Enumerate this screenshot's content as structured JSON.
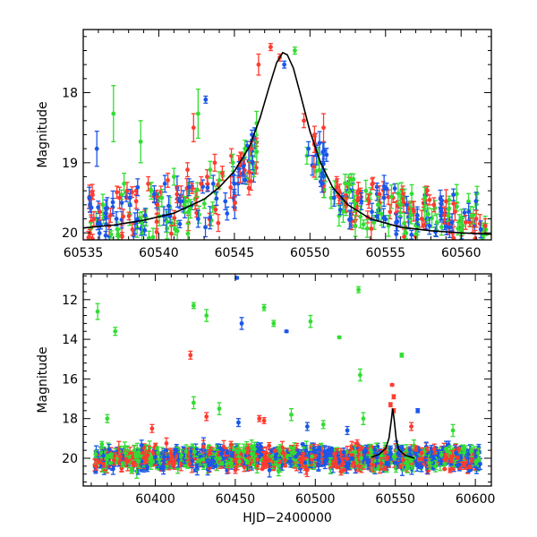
{
  "chart_data": [
    {
      "type": "scatter",
      "panel": "top",
      "title": "",
      "xlabel": "",
      "ylabel": "Magnitude",
      "xlim": [
        60535,
        60562
      ],
      "ylim": [
        20.1,
        17.1
      ],
      "y_inverted": true,
      "x_ticks": [
        60535,
        60540,
        60545,
        60550,
        60555,
        60560
      ],
      "x_tick_labels": [
        "60535",
        "60540",
        "60545",
        "60550",
        "60555",
        "60560"
      ],
      "y_ticks": [
        18,
        19,
        20
      ],
      "y_tick_labels": [
        "18",
        "19",
        "20"
      ],
      "grid": false,
      "legend": "none",
      "colors": {
        "red": "#ff3b2f",
        "green": "#33dd33",
        "blue": "#1a57e8",
        "model": "#000000"
      },
      "model_curve": {
        "description_peak": 60548.3,
        "x": [
          60535,
          60537,
          60539,
          60541,
          60543,
          60544,
          60545,
          60546,
          60546.7,
          60547.3,
          60547.8,
          60548.2,
          60548.5,
          60548.9,
          60549.4,
          60550,
          60550.7,
          60551.5,
          60552.5,
          60554,
          60556,
          60558,
          60560,
          60562
        ],
        "y": [
          19.93,
          19.89,
          19.82,
          19.72,
          19.52,
          19.35,
          19.12,
          18.77,
          18.36,
          17.92,
          17.57,
          17.43,
          17.46,
          17.65,
          18.05,
          18.55,
          19.0,
          19.35,
          19.6,
          19.8,
          19.92,
          19.97,
          20.0,
          20.02
        ]
      },
      "series": [
        {
          "color": "red",
          "points": [
            [
              60535.7,
              19.8,
              0.1
            ],
            [
              60536.1,
              19.7,
              0.12
            ],
            [
              60536.8,
              19.75,
              0.1
            ],
            [
              60537.4,
              19.5,
              0.15
            ],
            [
              60537.9,
              19.4,
              0.12
            ],
            [
              60538.5,
              19.55,
              0.1
            ],
            [
              60539.3,
              19.3,
              0.1
            ],
            [
              60539.9,
              19.6,
              0.12
            ],
            [
              60540.6,
              19.25,
              0.1
            ],
            [
              60541.2,
              19.45,
              0.12
            ],
            [
              60541.9,
              19.1,
              0.1
            ],
            [
              60542.3,
              18.5,
              0.2
            ],
            [
              60542.8,
              19.3,
              0.1
            ],
            [
              60543.2,
              19.2,
              0.1
            ],
            [
              60543.7,
              19.0,
              0.12
            ],
            [
              60544.2,
              19.15,
              0.1
            ],
            [
              60544.8,
              18.9,
              0.1
            ],
            [
              60545.4,
              18.95,
              0.1
            ],
            [
              60546.1,
              18.8,
              0.1
            ],
            [
              60546.6,
              17.6,
              0.15
            ],
            [
              60547.4,
              17.35,
              0.05
            ],
            [
              60548.0,
              17.5,
              0.05
            ],
            [
              60549.6,
              18.4,
              0.1
            ],
            [
              60550.3,
              18.6,
              0.12
            ],
            [
              60550.9,
              18.5,
              0.2
            ],
            [
              60551.8,
              19.35,
              0.12
            ],
            [
              60552.4,
              19.6,
              0.1
            ],
            [
              60553.2,
              19.4,
              0.12
            ],
            [
              60553.9,
              19.55,
              0.1
            ],
            [
              60554.6,
              19.45,
              0.12
            ],
            [
              60555.3,
              19.7,
              0.1
            ],
            [
              60556.1,
              19.5,
              0.12
            ],
            [
              60556.8,
              19.65,
              0.1
            ],
            [
              60557.4,
              19.8,
              0.12
            ],
            [
              60558.2,
              19.6,
              0.1
            ],
            [
              60558.9,
              19.75,
              0.12
            ],
            [
              60559.6,
              19.7,
              0.12
            ],
            [
              60560.3,
              19.85,
              0.1
            ],
            [
              60561.0,
              19.8,
              0.12
            ],
            [
              60561.6,
              19.9,
              0.1
            ]
          ]
        },
        {
          "color": "green",
          "points": [
            [
              60536.3,
              19.6,
              0.15
            ],
            [
              60537.0,
              18.3,
              0.4
            ],
            [
              60537.7,
              19.3,
              0.15
            ],
            [
              60538.8,
              18.7,
              0.3
            ],
            [
              60539.5,
              19.4,
              0.12
            ],
            [
              60540.2,
              19.5,
              0.12
            ],
            [
              60541.0,
              19.2,
              0.12
            ],
            [
              60541.7,
              19.6,
              0.12
            ],
            [
              60542.6,
              18.3,
              0.35
            ],
            [
              60543.4,
              19.1,
              0.12
            ],
            [
              60544.0,
              19.25,
              0.12
            ],
            [
              60544.9,
              19.0,
              0.12
            ],
            [
              60545.7,
              18.8,
              0.12
            ],
            [
              60546.3,
              19.1,
              0.1
            ],
            [
              60549.0,
              17.4,
              0.05
            ],
            [
              60549.8,
              18.9,
              0.12
            ],
            [
              60550.6,
              19.0,
              0.12
            ],
            [
              60551.4,
              19.5,
              0.15
            ],
            [
              60552.2,
              19.7,
              0.15
            ],
            [
              60553.0,
              19.9,
              0.15
            ],
            [
              60553.7,
              19.4,
              0.15
            ],
            [
              60554.5,
              19.6,
              0.12
            ],
            [
              60555.2,
              19.9,
              0.15
            ],
            [
              60556.0,
              19.6,
              0.12
            ],
            [
              60556.7,
              19.75,
              0.12
            ],
            [
              60557.6,
              19.5,
              0.15
            ],
            [
              60558.4,
              19.85,
              0.12
            ],
            [
              60559.2,
              19.65,
              0.12
            ],
            [
              60560.1,
              19.9,
              0.12
            ],
            [
              60560.8,
              19.75,
              0.12
            ]
          ]
        },
        {
          "color": "blue",
          "points": [
            [
              60535.4,
              19.5,
              0.15
            ],
            [
              60535.9,
              18.8,
              0.25
            ],
            [
              60536.5,
              19.65,
              0.12
            ],
            [
              60537.2,
              19.8,
              0.1
            ],
            [
              60538.1,
              19.5,
              0.12
            ],
            [
              60538.6,
              19.35,
              0.12
            ],
            [
              60539.1,
              19.75,
              0.1
            ],
            [
              60539.7,
              19.45,
              0.12
            ],
            [
              60540.4,
              19.3,
              0.12
            ],
            [
              60541.4,
              19.55,
              0.1
            ],
            [
              60542.0,
              19.35,
              0.12
            ],
            [
              60542.6,
              19.8,
              0.12
            ],
            [
              60543.1,
              18.1,
              0.05
            ],
            [
              60543.6,
              19.3,
              0.12
            ],
            [
              60544.4,
              19.55,
              0.12
            ],
            [
              60545.0,
              19.3,
              0.12
            ],
            [
              60545.6,
              19.05,
              0.12
            ],
            [
              60546.2,
              19.0,
              0.1
            ],
            [
              60548.3,
              17.6,
              0.05
            ],
            [
              60549.9,
              18.8,
              0.1
            ],
            [
              60550.8,
              19.3,
              0.12
            ],
            [
              60551.6,
              19.5,
              0.12
            ],
            [
              60552.7,
              19.8,
              0.12
            ],
            [
              60553.4,
              19.55,
              0.12
            ],
            [
              60554.1,
              19.7,
              0.12
            ],
            [
              60554.9,
              19.5,
              0.12
            ],
            [
              60555.7,
              19.85,
              0.12
            ],
            [
              60556.4,
              19.6,
              0.12
            ],
            [
              60557.1,
              19.75,
              0.12
            ],
            [
              60557.9,
              19.9,
              0.12
            ],
            [
              60558.7,
              19.7,
              0.12
            ],
            [
              60559.4,
              19.85,
              0.12
            ],
            [
              60560.5,
              19.7,
              0.12
            ],
            [
              60561.3,
              19.95,
              0.12
            ]
          ]
        }
      ]
    },
    {
      "type": "scatter",
      "panel": "bottom",
      "title": "",
      "xlabel": "HJD−2400000",
      "ylabel": "Magnitude",
      "xlim": [
        60355,
        60610
      ],
      "ylim": [
        21.4,
        10.7
      ],
      "y_inverted": true,
      "x_ticks": [
        60400,
        60450,
        60500,
        60550,
        60600
      ],
      "x_tick_labels": [
        "60400",
        "60450",
        "60500",
        "60550",
        "60600"
      ],
      "y_ticks": [
        12,
        14,
        16,
        18,
        20
      ],
      "y_tick_labels": [
        "12",
        "14",
        "16",
        "18",
        "20"
      ],
      "grid": false,
      "legend": "none",
      "colors": {
        "red": "#ff3b2f",
        "green": "#33dd33",
        "blue": "#1a57e8",
        "model": "#000000"
      },
      "model_curve": {
        "x": [
          60535,
          60540,
          60544,
          60546,
          60547.5,
          60548.3,
          60549.2,
          60550.5,
          60552,
          60556,
          60562
        ],
        "y": [
          19.95,
          19.8,
          19.5,
          19.0,
          18.1,
          17.5,
          18.0,
          19.0,
          19.55,
          19.85,
          20.0
        ]
      },
      "series": [
        {
          "color": "green",
          "points": [
            [
              60364,
              12.6,
              0.4
            ],
            [
              60375,
              13.6,
              0.2
            ],
            [
              60424,
              12.3,
              0.15
            ],
            [
              60432,
              12.8,
              0.3
            ],
            [
              60468,
              12.4,
              0.15
            ],
            [
              60474,
              13.2,
              0.15
            ],
            [
              60497,
              13.1,
              0.3
            ],
            [
              60515,
              13.9,
              0.05
            ],
            [
              60527,
              11.5,
              0.15
            ],
            [
              60528,
              15.8,
              0.3
            ],
            [
              60554,
              14.8,
              0.1
            ],
            [
              60424,
              17.2,
              0.3
            ],
            [
              60440,
              17.5,
              0.3
            ],
            [
              60485,
              17.8,
              0.3
            ],
            [
              60530,
              18.0,
              0.3
            ],
            [
              60370,
              18.0,
              0.2
            ],
            [
              60505,
              18.3,
              0.2
            ],
            [
              60586,
              18.6,
              0.3
            ]
          ]
        },
        {
          "color": "red",
          "points": [
            [
              60422,
              14.8,
              0.2
            ],
            [
              60548,
              16.3,
              0.05
            ],
            [
              60547,
              17.3,
              0.1
            ],
            [
              60549,
              17.6,
              0.1
            ],
            [
              60549,
              16.9,
              0.1
            ],
            [
              60432,
              17.9,
              0.2
            ],
            [
              60465,
              18.0,
              0.15
            ],
            [
              60468,
              18.1,
              0.15
            ],
            [
              60560,
              18.4,
              0.2
            ],
            [
              60398,
              18.5,
              0.2
            ]
          ]
        },
        {
          "color": "blue",
          "points": [
            [
              60451,
              10.9,
              0.05
            ],
            [
              60454,
              13.2,
              0.3
            ],
            [
              60482,
              13.6,
              0.05
            ],
            [
              60564,
              17.6,
              0.1
            ],
            [
              60452,
              18.2,
              0.2
            ],
            [
              60520,
              18.6,
              0.2
            ],
            [
              60495,
              18.4,
              0.2
            ]
          ]
        }
      ],
      "dense_band": {
        "x_range": [
          60362,
          60603
        ],
        "y_center": 20.0,
        "y_spread": 0.55
      }
    }
  ]
}
